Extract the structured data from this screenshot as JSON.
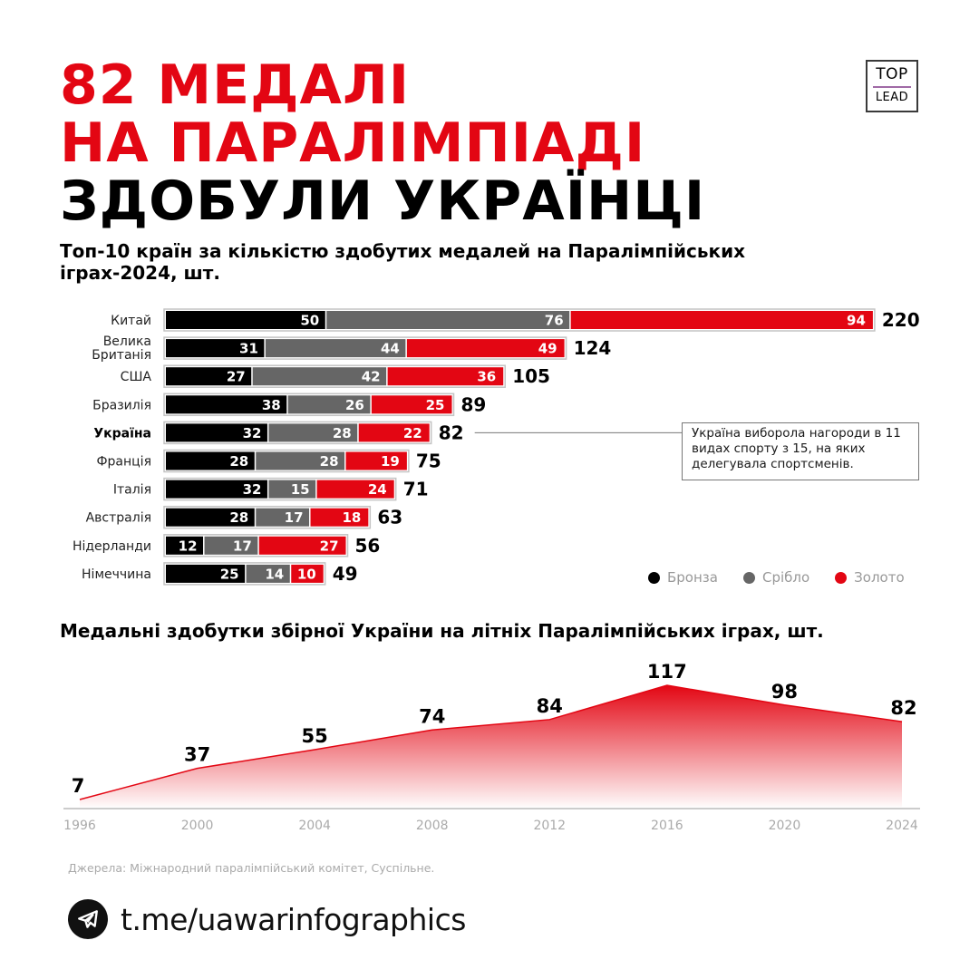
{
  "header": {
    "title_line1": "82 МЕДАЛІ",
    "title_line2": "НА ПАРАЛІМПІАДІ",
    "title_line3": "ЗДОБУЛИ УКРАЇНЦІ",
    "logo_top": "TOP",
    "logo_bottom": "LEAD"
  },
  "colors": {
    "bronze": "#000000",
    "silver": "#666666",
    "gold": "#e30613",
    "accent": "#e30613"
  },
  "chart_data": [
    {
      "type": "bar",
      "orientation": "horizontal",
      "stacked": true,
      "title": "Топ-10 країн за кількістю здобутих медалей на Паралімпійських іграх-2024, шт.",
      "categories": [
        "Китай",
        "Велика Британія",
        "США",
        "Бразилія",
        "Україна",
        "Франція",
        "Італія",
        "Австралія",
        "Нідерланди",
        "Німеччина"
      ],
      "highlight": "Україна",
      "series": [
        {
          "name": "Бронза",
          "color": "#000000",
          "values": [
            50,
            31,
            27,
            38,
            32,
            28,
            32,
            28,
            12,
            25
          ]
        },
        {
          "name": "Срібло",
          "color": "#666666",
          "values": [
            76,
            44,
            42,
            26,
            28,
            28,
            15,
            17,
            17,
            14
          ]
        },
        {
          "name": "Золото",
          "color": "#e30613",
          "values": [
            94,
            49,
            36,
            25,
            22,
            19,
            24,
            18,
            27,
            10
          ]
        }
      ],
      "totals": [
        220,
        124,
        105,
        89,
        82,
        75,
        71,
        63,
        56,
        49
      ],
      "legend": [
        "Бронза",
        "Срібло",
        "Золото"
      ],
      "legend_position": "bottom-right",
      "annotation": "Україна виборола нагороди в 11 видах спорту з 15, на яких делегувала спортсменів."
    },
    {
      "type": "area",
      "title": "Медальні здобутки збірної України на літніх Паралімпійських іграх, шт.",
      "x": [
        "1996",
        "2000",
        "2004",
        "2008",
        "2012",
        "2016",
        "2020",
        "2024"
      ],
      "values": [
        7,
        37,
        55,
        74,
        84,
        117,
        98,
        82
      ],
      "color": "#e30613",
      "xlabel": "",
      "ylabel": "",
      "grid": false
    }
  ],
  "footer": {
    "source": "Джерела: Міжнародний паралімпійський комітет, Суспільне.",
    "telegram_link": "t.me/uawarinfographics",
    "telegram_icon": "telegram-icon"
  }
}
